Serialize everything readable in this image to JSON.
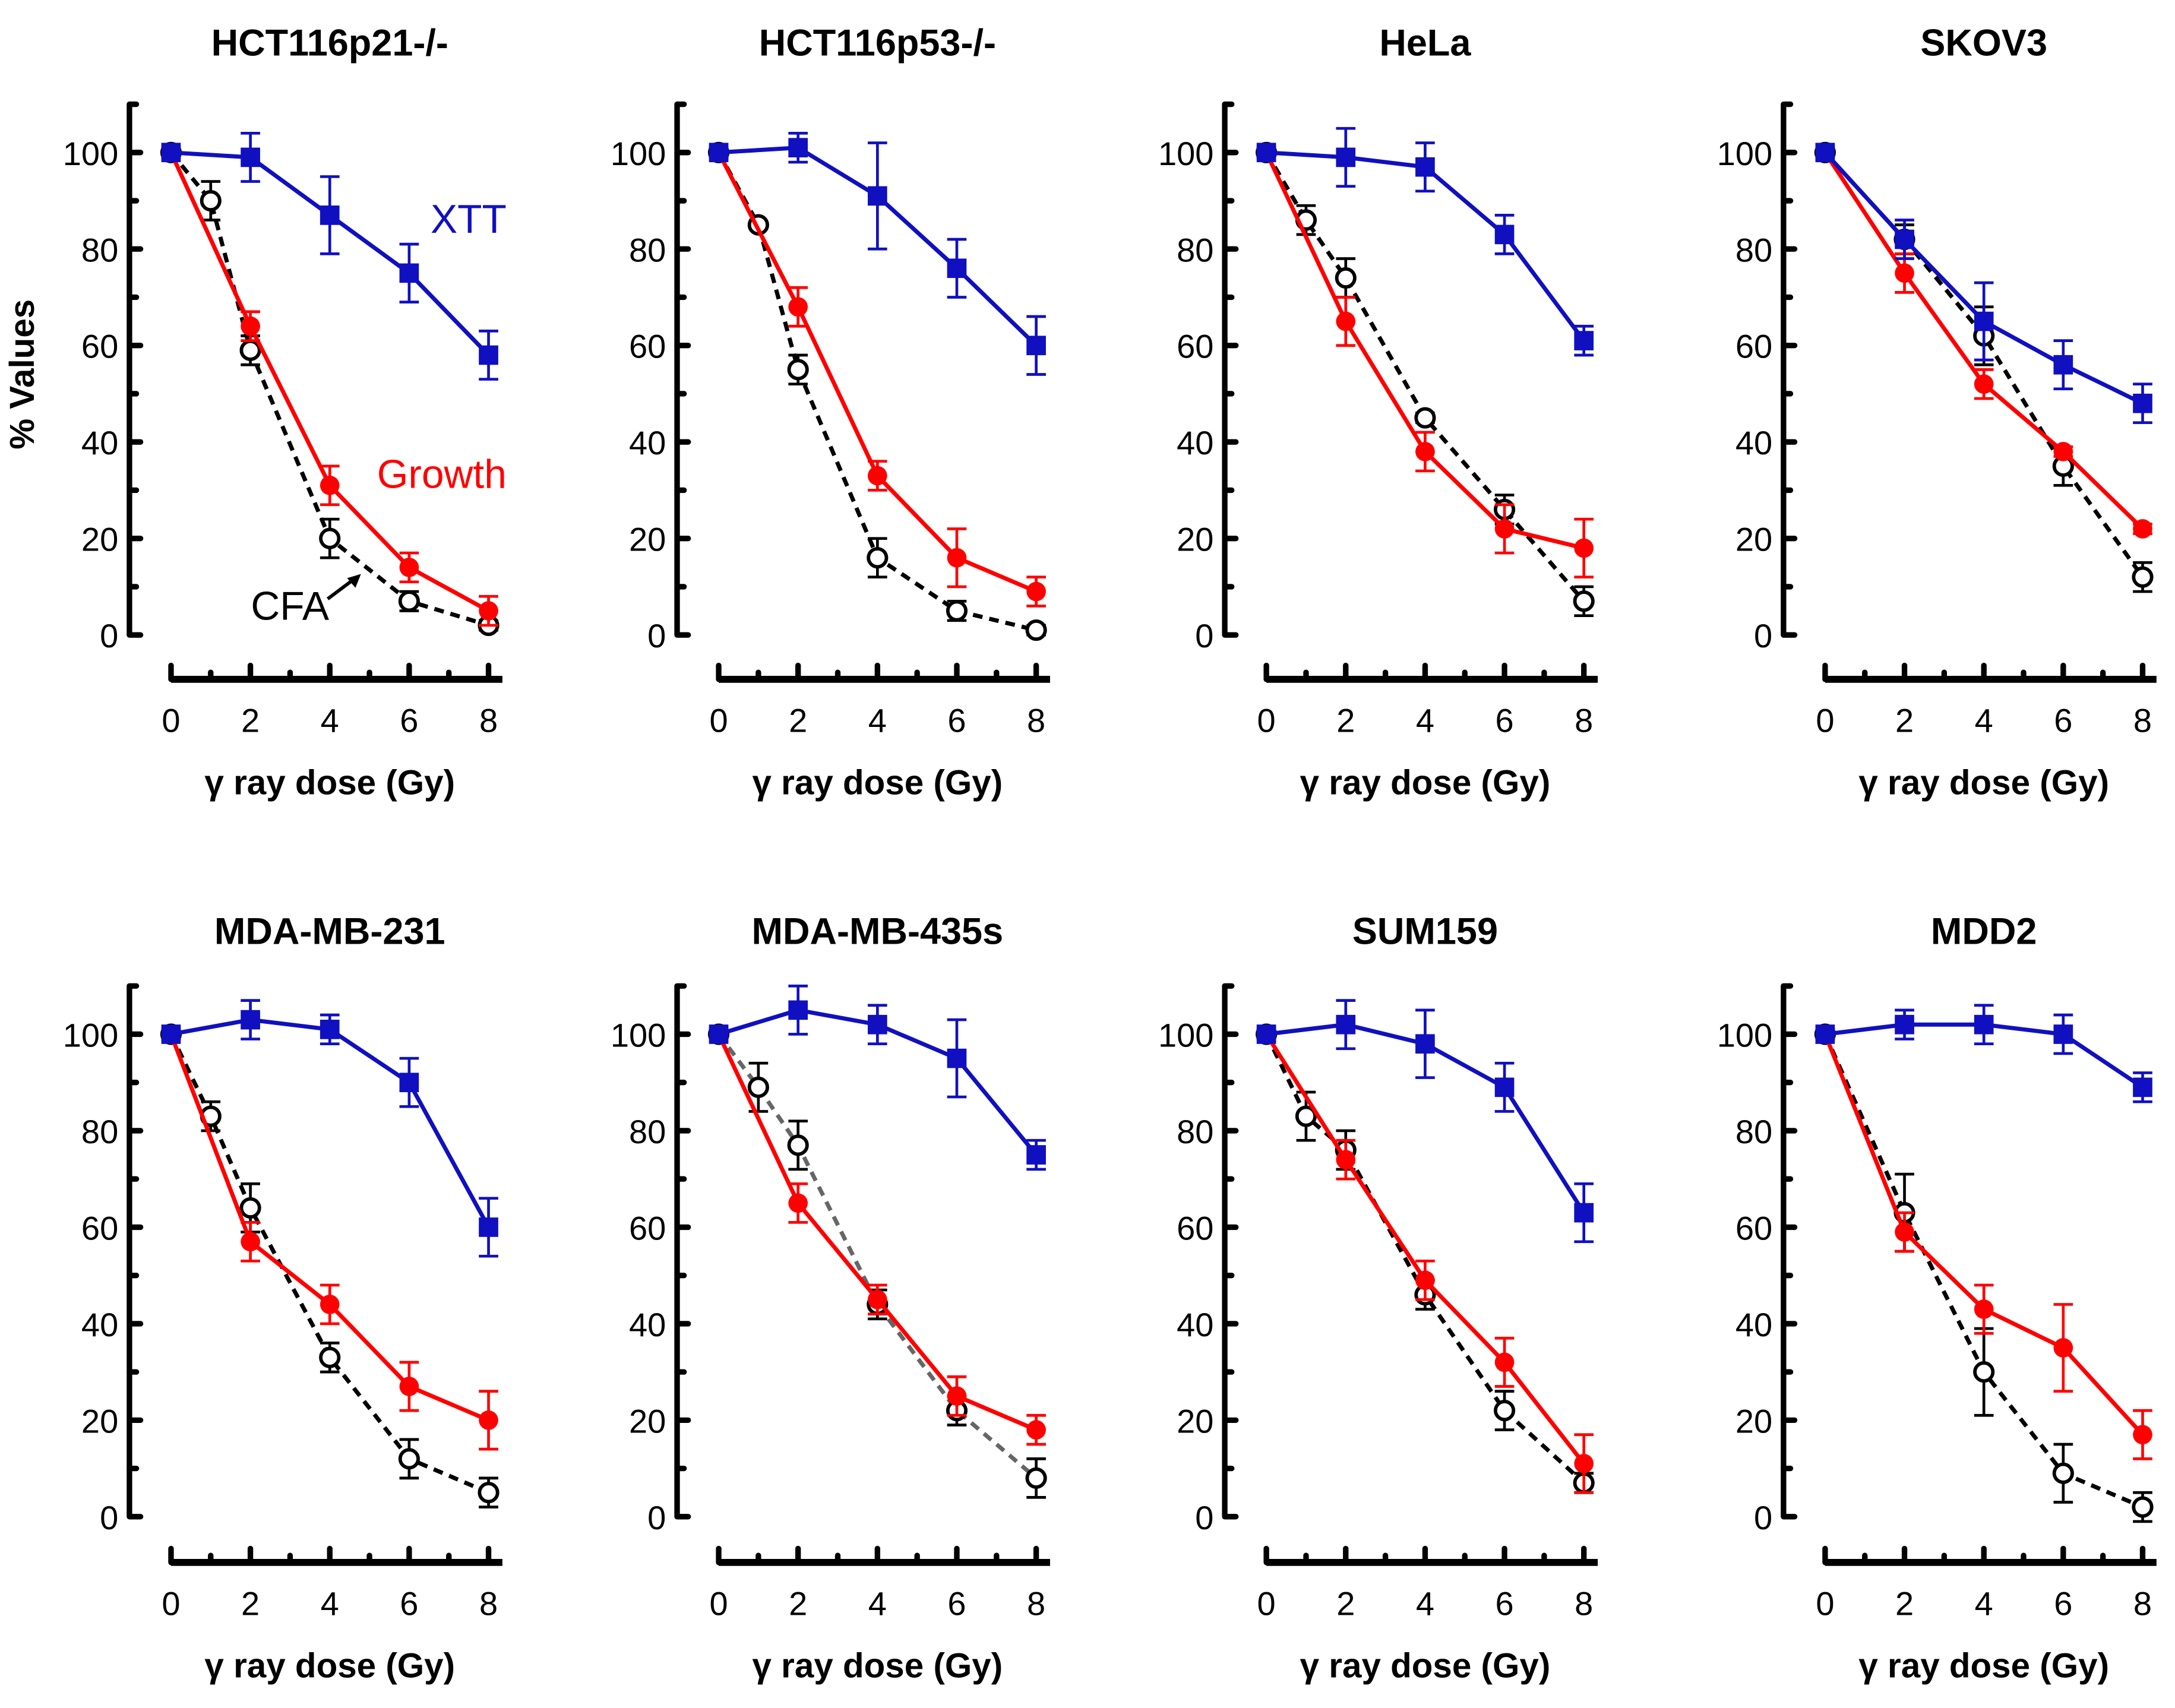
{
  "chart_data": {
    "type": "line",
    "ylabel": "% Values",
    "xlabel": "γ ray dose (Gy)",
    "xlim": [
      0,
      8
    ],
    "ylim": [
      0,
      110
    ],
    "xticks": [
      0,
      2,
      4,
      6,
      8
    ],
    "yticks": [
      0,
      20,
      40,
      60,
      80,
      100
    ],
    "colors": {
      "XTT": "#1010c0",
      "Growth": "#ff0000",
      "CFA": "#000000",
      "CFA_alt": "#666666"
    },
    "annotations": {
      "xtt": "XTT",
      "growth": "Growth",
      "cfa": "CFA"
    },
    "panels": [
      {
        "title": "HCT116p21-/-",
        "series": [
          {
            "name": "XTT",
            "x": [
              0,
              2,
              4,
              6,
              8
            ],
            "y": [
              100,
              99,
              87,
              75,
              58
            ],
            "err": [
              1,
              5,
              8,
              6,
              5
            ]
          },
          {
            "name": "Growth",
            "x": [
              0,
              2,
              4,
              6,
              8
            ],
            "y": [
              100,
              64,
              31,
              14,
              5
            ],
            "err": [
              1,
              3,
              4,
              3,
              3
            ]
          },
          {
            "name": "CFA",
            "x": [
              0,
              1,
              2,
              4,
              6,
              8
            ],
            "y": [
              100,
              90,
              59,
              20,
              7,
              2
            ],
            "err": [
              0,
              4,
              3,
              4,
              2,
              1
            ]
          }
        ]
      },
      {
        "title": "HCT116p53-/-",
        "series": [
          {
            "name": "XTT",
            "x": [
              0,
              2,
              4,
              6,
              8
            ],
            "y": [
              100,
              101,
              91,
              76,
              60
            ],
            "err": [
              1,
              3,
              11,
              6,
              6
            ]
          },
          {
            "name": "Growth",
            "x": [
              0,
              2,
              4,
              6,
              8
            ],
            "y": [
              100,
              68,
              33,
              16,
              9
            ],
            "err": [
              1,
              4,
              3,
              6,
              3
            ]
          },
          {
            "name": "CFA",
            "x": [
              0,
              1,
              2,
              4,
              6,
              8
            ],
            "y": [
              100,
              85,
              55,
              16,
              5,
              1
            ],
            "err": [
              0,
              0,
              3,
              4,
              2,
              1
            ]
          }
        ]
      },
      {
        "title": "HeLa",
        "series": [
          {
            "name": "XTT",
            "x": [
              0,
              2,
              4,
              6,
              8
            ],
            "y": [
              100,
              99,
              97,
              83,
              61
            ],
            "err": [
              1,
              6,
              5,
              4,
              3
            ]
          },
          {
            "name": "Growth",
            "x": [
              0,
              2,
              4,
              6,
              8
            ],
            "y": [
              100,
              65,
              38,
              22,
              18
            ],
            "err": [
              1,
              5,
              4,
              5,
              6
            ]
          },
          {
            "name": "CFA",
            "x": [
              0,
              1,
              2,
              4,
              6,
              8
            ],
            "y": [
              100,
              86,
              74,
              45,
              26,
              7
            ],
            "err": [
              0,
              3,
              4,
              1,
              3,
              3
            ]
          }
        ]
      },
      {
        "title": "SKOV3",
        "series": [
          {
            "name": "XTT",
            "x": [
              0,
              2,
              4,
              6,
              8
            ],
            "y": [
              100,
              82,
              65,
              56,
              48
            ],
            "err": [
              1,
              4,
              8,
              5,
              4
            ]
          },
          {
            "name": "Growth",
            "x": [
              0,
              2,
              4,
              6,
              8
            ],
            "y": [
              100,
              75,
              52,
              38,
              22
            ],
            "err": [
              1,
              4,
              3,
              1,
              1
            ]
          },
          {
            "name": "CFA",
            "x": [
              0,
              2,
              4,
              6,
              8
            ],
            "y": [
              100,
              82,
              62,
              35,
              12
            ],
            "err": [
              0,
              3,
              6,
              4,
              3
            ]
          }
        ]
      },
      {
        "title": "MDA-MB-231",
        "series": [
          {
            "name": "XTT",
            "x": [
              0,
              2,
              4,
              6,
              8
            ],
            "y": [
              100,
              103,
              101,
              90,
              60
            ],
            "err": [
              1,
              4,
              3,
              5,
              6
            ]
          },
          {
            "name": "Growth",
            "x": [
              0,
              2,
              4,
              6,
              8
            ],
            "y": [
              100,
              57,
              44,
              27,
              20
            ],
            "err": [
              1,
              4,
              4,
              5,
              6
            ]
          },
          {
            "name": "CFA",
            "x": [
              0,
              1,
              2,
              4,
              6,
              8
            ],
            "y": [
              100,
              83,
              64,
              33,
              12,
              5
            ],
            "err": [
              0,
              3,
              5,
              3,
              4,
              3
            ]
          }
        ]
      },
      {
        "title": "MDA-MB-435s",
        "cfa_style": "gray",
        "series": [
          {
            "name": "XTT",
            "x": [
              0,
              2,
              4,
              6,
              8
            ],
            "y": [
              100,
              105,
              102,
              95,
              75
            ],
            "err": [
              1,
              5,
              4,
              8,
              3
            ]
          },
          {
            "name": "Growth",
            "x": [
              0,
              2,
              4,
              6,
              8
            ],
            "y": [
              100,
              65,
              45,
              25,
              18
            ],
            "err": [
              1,
              4,
              3,
              4,
              3
            ]
          },
          {
            "name": "CFA",
            "x": [
              0,
              1,
              2,
              4,
              6,
              8
            ],
            "y": [
              100,
              89,
              77,
              44,
              22,
              8
            ],
            "err": [
              0,
              5,
              5,
              3,
              3,
              4
            ]
          }
        ]
      },
      {
        "title": "SUM159",
        "series": [
          {
            "name": "XTT",
            "x": [
              0,
              2,
              4,
              6,
              8
            ],
            "y": [
              100,
              102,
              98,
              89,
              63
            ],
            "err": [
              1,
              5,
              7,
              5,
              6
            ]
          },
          {
            "name": "Growth",
            "x": [
              0,
              2,
              4,
              6,
              8
            ],
            "y": [
              100,
              74,
              49,
              32,
              11
            ],
            "err": [
              1,
              4,
              4,
              5,
              6
            ]
          },
          {
            "name": "CFA",
            "x": [
              0,
              1,
              2,
              4,
              6,
              8
            ],
            "y": [
              100,
              83,
              76,
              46,
              22,
              7
            ],
            "err": [
              0,
              5,
              4,
              3,
              4,
              2
            ]
          }
        ]
      },
      {
        "title": "MDD2",
        "series": [
          {
            "name": "XTT",
            "x": [
              0,
              2,
              4,
              6,
              8
            ],
            "y": [
              100,
              102,
              102,
              100,
              89
            ],
            "err": [
              1,
              3,
              4,
              4,
              3
            ]
          },
          {
            "name": "Growth",
            "x": [
              0,
              2,
              4,
              6,
              8
            ],
            "y": [
              100,
              59,
              43,
              35,
              17
            ],
            "err": [
              1,
              4,
              5,
              9,
              5
            ]
          },
          {
            "name": "CFA",
            "x": [
              0,
              2,
              4,
              6,
              8
            ],
            "y": [
              100,
              63,
              30,
              9,
              2
            ],
            "err": [
              0,
              8,
              9,
              6,
              3
            ]
          }
        ]
      }
    ]
  }
}
